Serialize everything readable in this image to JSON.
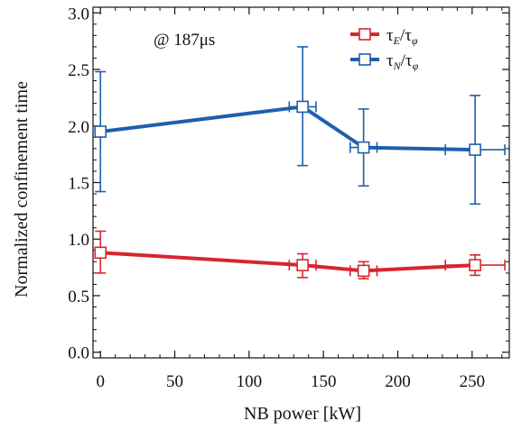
{
  "chart_data": {
    "type": "line",
    "xlabel": "NB power [kW]",
    "ylabel": "Normalized confinement time",
    "xlim": [
      -5,
      275
    ],
    "ylim": [
      -0.05,
      3.05
    ],
    "xticks": [
      0,
      50,
      100,
      150,
      200,
      250
    ],
    "yticks": [
      0.0,
      0.5,
      1.0,
      1.5,
      2.0,
      2.5,
      3.0
    ],
    "xtick_labels": [
      "0",
      "50",
      "100",
      "150",
      "200",
      "250"
    ],
    "ytick_labels": [
      "0.0",
      "0.5",
      "1.0",
      "1.5",
      "2.0",
      "2.5",
      "3.0"
    ],
    "annotation": "@ 187μs",
    "grid": false,
    "legend_position": "top-right",
    "series": [
      {
        "name": "τE/τφ",
        "legend_main": "τ",
        "legend_sub": "E",
        "legend_rest": "/τ",
        "legend_sub2": "φ",
        "color": "#d8262e",
        "points": [
          {
            "x": 0,
            "y": 0.88,
            "yerr_low": 0.7,
            "yerr_high": 1.07,
            "xerr_low": null,
            "xerr_high": null
          },
          {
            "x": 136,
            "y": 0.77,
            "yerr_low": 0.66,
            "yerr_high": 0.87,
            "xerr_low": 127,
            "xerr_high": 145
          },
          {
            "x": 177,
            "y": 0.72,
            "yerr_low": 0.65,
            "yerr_high": 0.8,
            "xerr_low": 168,
            "xerr_high": 186
          },
          {
            "x": 252,
            "y": 0.77,
            "yerr_low": 0.68,
            "yerr_high": 0.86,
            "xerr_low": 232,
            "xerr_high": 272
          }
        ]
      },
      {
        "name": "τN/τφ",
        "legend_main": "τ",
        "legend_sub": "N",
        "legend_rest": "/τ",
        "legend_sub2": "φ",
        "color": "#1f5fad",
        "points": [
          {
            "x": 0,
            "y": 1.95,
            "yerr_low": 1.42,
            "yerr_high": 2.48,
            "xerr_low": null,
            "xerr_high": null
          },
          {
            "x": 136,
            "y": 2.17,
            "yerr_low": 1.65,
            "yerr_high": 2.7,
            "xerr_low": 127,
            "xerr_high": 145
          },
          {
            "x": 177,
            "y": 1.81,
            "yerr_low": 1.47,
            "yerr_high": 2.15,
            "xerr_low": 168,
            "xerr_high": 186
          },
          {
            "x": 252,
            "y": 1.79,
            "yerr_low": 1.31,
            "yerr_high": 2.27,
            "xerr_low": 232,
            "xerr_high": 272
          }
        ]
      }
    ]
  }
}
